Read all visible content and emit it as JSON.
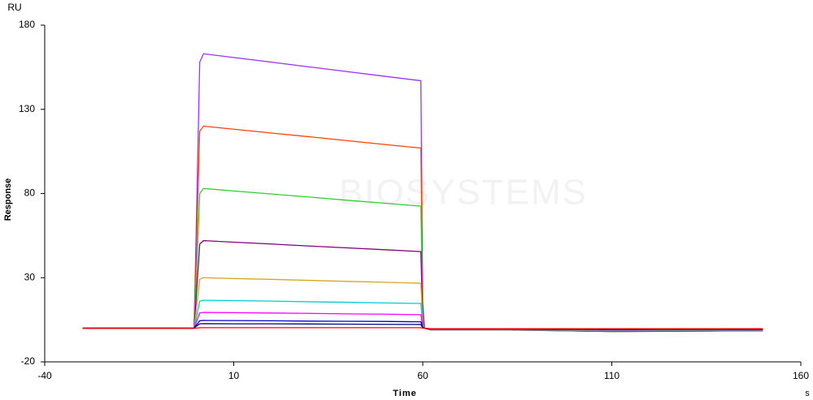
{
  "chart_data": {
    "type": "line",
    "y_unit": "RU",
    "y_label": "Response",
    "x_label": "Time",
    "x_unit": "s",
    "watermark": "BIOSYSTEMS",
    "xlim": [
      -40,
      160
    ],
    "xticks": [
      -40,
      10,
      60,
      110,
      160
    ],
    "ylim": [
      -20,
      180
    ],
    "yticks": [
      -20,
      30,
      80,
      130,
      180
    ],
    "x": [
      -30,
      -0.5,
      0,
      1,
      2,
      10,
      20,
      30,
      40,
      50,
      59.5,
      60,
      60.5,
      62,
      80,
      110,
      150
    ],
    "series": [
      {
        "color": "#9b30ff",
        "values": [
          0,
          0,
          50,
          158,
          163,
          160.8,
          158,
          155.2,
          152.4,
          149.6,
          147,
          15,
          0,
          -1,
          -1,
          -2,
          -1.5
        ]
      },
      {
        "color": "#ff4500",
        "values": [
          0,
          0,
          36,
          117,
          120,
          118.2,
          115.9,
          113.7,
          111.4,
          109.1,
          107,
          11,
          0,
          -1,
          -1,
          -2,
          -1.5
        ]
      },
      {
        "color": "#32cd32",
        "values": [
          0,
          0,
          25,
          80,
          83,
          81.5,
          79.7,
          77.9,
          76,
          74.2,
          72.5,
          7,
          0,
          -1,
          -1,
          -2,
          -1.5
        ]
      },
      {
        "color": "#800080",
        "values": [
          0,
          0,
          16,
          50,
          52,
          51.1,
          50,
          48.8,
          47.7,
          46.6,
          45.5,
          5,
          0,
          -1,
          -1,
          -1.8,
          -1.5
        ]
      },
      {
        "color": "#daa520",
        "values": [
          0,
          0,
          9,
          29,
          30,
          29.5,
          29,
          28.4,
          27.8,
          27.3,
          26.7,
          3,
          0,
          -1,
          -1,
          -1.5,
          -1.2
        ]
      },
      {
        "color": "#00ced1",
        "values": [
          0,
          0,
          5,
          16,
          16.6,
          16.4,
          16.1,
          15.7,
          15.4,
          15,
          14.7,
          1.5,
          0,
          -0.8,
          -0.8,
          -1.2,
          -1
        ]
      },
      {
        "color": "#ff00ff",
        "values": [
          0,
          0,
          3,
          9,
          9.4,
          9.2,
          9,
          8.8,
          8.5,
          8.3,
          8,
          1,
          0,
          -0.6,
          -0.6,
          -1,
          -0.8
        ]
      },
      {
        "color": "#0000cd",
        "values": [
          0,
          0,
          1.5,
          4.4,
          4.6,
          4.5,
          4.4,
          4.2,
          4.1,
          4,
          3.8,
          0.5,
          0,
          -0.5,
          -0.5,
          -0.8,
          -0.6
        ]
      },
      {
        "color": "#000080",
        "values": [
          0,
          0,
          1,
          2.6,
          2.7,
          2.6,
          2.6,
          2.5,
          2.4,
          2.3,
          2.2,
          0.3,
          0,
          -0.4,
          -0.4,
          -0.6,
          -0.5
        ]
      },
      {
        "color": "#ff0000",
        "values": [
          0,
          0,
          0,
          0.3,
          0.3,
          0.3,
          0.3,
          0.3,
          0.3,
          0.3,
          0.3,
          0,
          0,
          -0.3,
          -0.3,
          -0.3,
          -0.3
        ]
      }
    ]
  }
}
